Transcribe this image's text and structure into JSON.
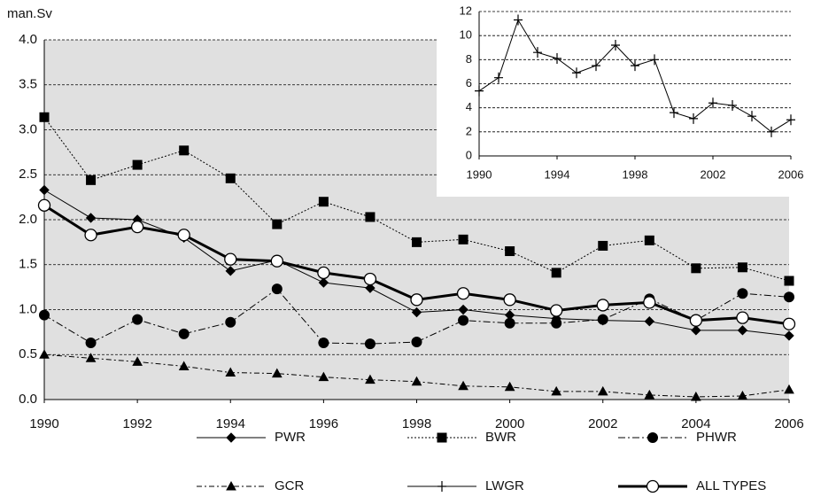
{
  "chart_data": {
    "type": "line",
    "y_label": "man.Sv",
    "x": [
      1990,
      1991,
      1992,
      1993,
      1994,
      1995,
      1996,
      1997,
      1998,
      1999,
      2000,
      2001,
      2002,
      2003,
      2004,
      2005,
      2006
    ],
    "xlim": [
      1990,
      2006
    ],
    "xticks": [
      1990,
      1992,
      1994,
      1996,
      1998,
      2000,
      2002,
      2004,
      2006
    ],
    "ylim": [
      0,
      4
    ],
    "yticks": [
      {
        "value": 0,
        "label": "0.0"
      },
      0.5,
      {
        "value": 1,
        "label": "1.0"
      },
      1.5,
      {
        "value": 2,
        "label": "2.0"
      },
      2.5,
      {
        "value": 3,
        "label": "3.0"
      },
      3.5,
      {
        "value": 4,
        "label": "4.0"
      }
    ],
    "grid": true,
    "inset": {
      "xlim": [
        1990,
        2006
      ],
      "xticks": [
        1990,
        1994,
        1998,
        2002,
        2006
      ],
      "ylim": [
        0,
        12
      ],
      "yticks": [
        0,
        2,
        4,
        6,
        8,
        10,
        12
      ],
      "grid": true
    },
    "series": [
      {
        "name": "PWR",
        "color": "#000000",
        "marker": "diamond",
        "dash": "none",
        "values": [
          2.33,
          2.02,
          2.0,
          1.8,
          1.43,
          1.55,
          1.3,
          1.24,
          0.97,
          1.0,
          0.94,
          0.9,
          0.88,
          0.87,
          0.77,
          0.77,
          0.71
        ]
      },
      {
        "name": "BWR",
        "color": "#000000",
        "marker": "square",
        "dash": "2,2",
        "values": [
          3.14,
          2.44,
          2.61,
          2.77,
          2.46,
          1.95,
          2.2,
          2.03,
          1.75,
          1.78,
          1.65,
          1.41,
          1.71,
          1.77,
          1.46,
          1.47,
          1.32
        ]
      },
      {
        "name": "PHWR",
        "color": "#000000",
        "marker": "circle",
        "dash": "8,3,2,3",
        "values": [
          0.94,
          0.63,
          0.89,
          0.73,
          0.86,
          1.23,
          0.63,
          0.62,
          0.64,
          0.88,
          0.85,
          0.85,
          0.89,
          1.12,
          0.88,
          1.18,
          1.14
        ]
      },
      {
        "name": "GCR",
        "color": "#000000",
        "marker": "triangle",
        "dash": "6,3,2,3",
        "values": [
          0.5,
          0.46,
          0.42,
          0.37,
          0.3,
          0.29,
          0.25,
          0.22,
          0.2,
          0.15,
          0.14,
          0.09,
          0.09,
          0.05,
          0.03,
          0.04,
          0.11
        ]
      },
      {
        "name": "LWGR",
        "color": "#000000",
        "marker": "plus",
        "dash": "none",
        "axis": "inset",
        "values": [
          5.4,
          6.5,
          11.3,
          8.6,
          8.1,
          6.9,
          7.5,
          9.2,
          7.5,
          8.0,
          3.6,
          3.1,
          4.4,
          4.2,
          3.3,
          2.0,
          3.0
        ]
      },
      {
        "name": "ALL TYPES",
        "color": "#000000",
        "marker": "open-circle",
        "dash": "none",
        "width": 3,
        "values": [
          2.16,
          1.83,
          1.92,
          1.83,
          1.56,
          1.54,
          1.41,
          1.34,
          1.11,
          1.18,
          1.11,
          0.99,
          1.05,
          1.08,
          0.88,
          0.91,
          0.84
        ]
      }
    ]
  }
}
